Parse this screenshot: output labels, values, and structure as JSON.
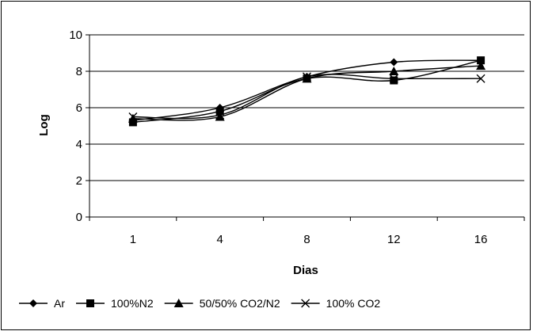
{
  "chart_data": {
    "type": "line",
    "title": "",
    "xlabel": "Dias",
    "ylabel": "Log",
    "categories": [
      "1",
      "4",
      "8",
      "12",
      "16"
    ],
    "ylim": [
      0,
      10
    ],
    "yticks": [
      0,
      2,
      4,
      6,
      8,
      10
    ],
    "grid": "horizontal",
    "legend_position": "bottom",
    "series": [
      {
        "name": "Ar",
        "marker": "diamond",
        "values": [
          5.3,
          6.0,
          7.7,
          8.5,
          8.6
        ]
      },
      {
        "name": "100%N2",
        "marker": "square",
        "values": [
          5.2,
          5.8,
          7.6,
          7.5,
          8.6
        ]
      },
      {
        "name": "50/50% CO2/N2",
        "marker": "triangle",
        "values": [
          5.4,
          5.5,
          7.6,
          8.0,
          8.3
        ]
      },
      {
        "name": "100% CO2",
        "marker": "x",
        "values": [
          5.5,
          5.6,
          7.7,
          7.6,
          7.6
        ]
      }
    ]
  }
}
